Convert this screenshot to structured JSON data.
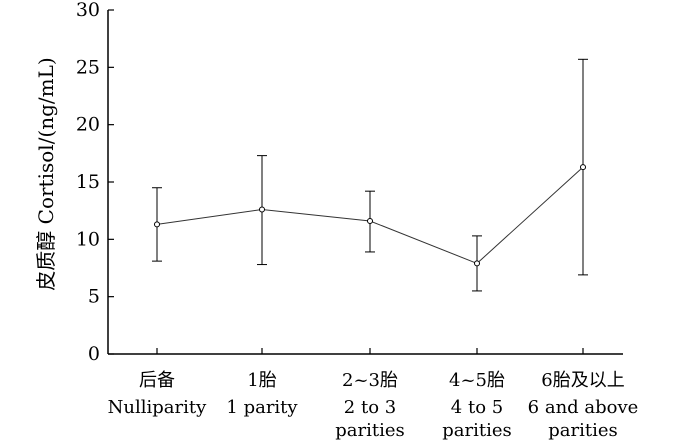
{
  "chart_data": {
    "type": "line",
    "ylabel": "皮质醇  Cortisol/(ng/mL)",
    "xlabel": "",
    "ylim": [
      0,
      30
    ],
    "yticks": [
      0,
      5,
      10,
      15,
      20,
      25,
      30
    ],
    "grid": false,
    "categories": [
      {
        "cn": "后备",
        "en": [
          "Nulliparity"
        ]
      },
      {
        "cn": "1胎",
        "en": [
          "1 parity"
        ]
      },
      {
        "cn": "2~3胎",
        "en": [
          "2 to 3",
          "parities"
        ]
      },
      {
        "cn": "4~5胎",
        "en": [
          "4 to 5",
          "parities"
        ]
      },
      {
        "cn": "6胎及以上",
        "en": [
          "6 and above",
          "parities"
        ]
      }
    ],
    "series": [
      {
        "values": [
          11.3,
          12.6,
          11.6,
          7.9,
          16.3
        ],
        "error_low": [
          8.1,
          7.8,
          8.9,
          5.5,
          6.9
        ],
        "error_high": [
          14.5,
          17.3,
          14.2,
          10.3,
          25.7
        ]
      }
    ]
  }
}
